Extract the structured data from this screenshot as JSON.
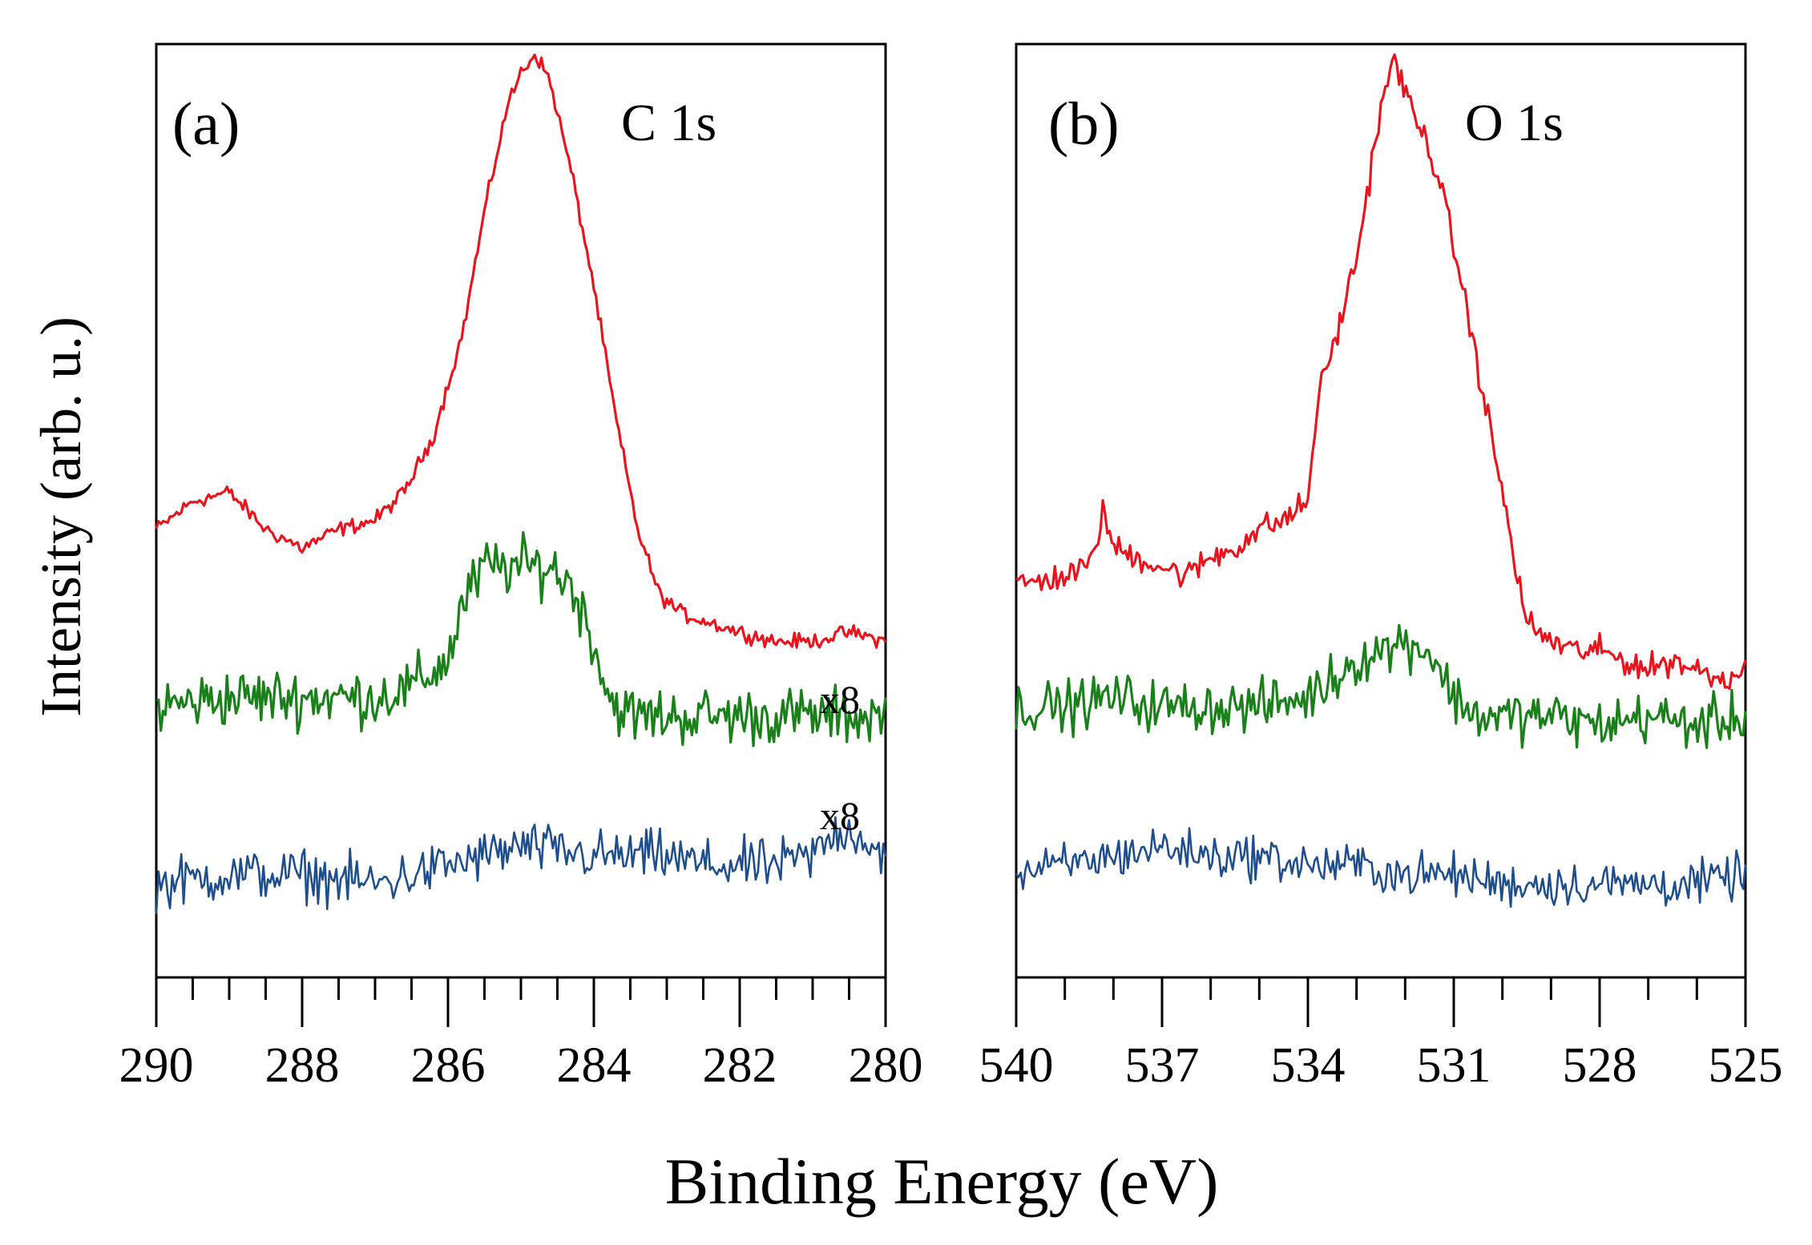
{
  "figure": {
    "ylabel": "Intensity (arb. u.)",
    "xlabel": "Binding Energy (eV)"
  },
  "chart_data": [
    {
      "type": "line",
      "panel_label": "(a)",
      "title": "C 1s",
      "xlim": [
        290,
        280
      ],
      "x_reversed": true,
      "major_ticks": [
        290,
        288,
        286,
        284,
        282,
        280
      ],
      "minor_tick_step": 0.5,
      "y_ticks_shown": false,
      "scale_labels": [
        "x8",
        "x8"
      ],
      "series": [
        {
          "color": "#e8141e",
          "noise": 0.012,
          "points": [
            [
              290,
              0.48
            ],
            [
              289.5,
              0.51
            ],
            [
              289,
              0.52
            ],
            [
              288.5,
              0.48
            ],
            [
              288,
              0.46
            ],
            [
              287.5,
              0.48
            ],
            [
              287,
              0.49
            ],
            [
              286.6,
              0.52
            ],
            [
              286.2,
              0.58
            ],
            [
              285.8,
              0.69
            ],
            [
              285.5,
              0.82
            ],
            [
              285.2,
              0.93
            ],
            [
              285.0,
              0.97
            ],
            [
              284.8,
              0.99
            ],
            [
              284.6,
              0.96
            ],
            [
              284.3,
              0.86
            ],
            [
              284.0,
              0.74
            ],
            [
              283.7,
              0.6
            ],
            [
              283.4,
              0.48
            ],
            [
              283.1,
              0.41
            ],
            [
              282.8,
              0.39
            ],
            [
              282.4,
              0.38
            ],
            [
              282,
              0.37
            ],
            [
              281.5,
              0.36
            ],
            [
              281,
              0.36
            ],
            [
              280.5,
              0.37
            ],
            [
              280,
              0.36
            ]
          ]
        },
        {
          "color": "#1a801a",
          "noise": 0.045,
          "points": [
            [
              290,
              0.29
            ],
            [
              289,
              0.3
            ],
            [
              288,
              0.3
            ],
            [
              287,
              0.3
            ],
            [
              286.5,
              0.31
            ],
            [
              286,
              0.34
            ],
            [
              285.8,
              0.4
            ],
            [
              285.5,
              0.44
            ],
            [
              285.0,
              0.44
            ],
            [
              284.6,
              0.44
            ],
            [
              284.3,
              0.42
            ],
            [
              284.0,
              0.36
            ],
            [
              283.8,
              0.3
            ],
            [
              283.5,
              0.28
            ],
            [
              283,
              0.28
            ],
            [
              282,
              0.28
            ],
            [
              281,
              0.28
            ],
            [
              280,
              0.28
            ]
          ]
        },
        {
          "color": "#1f4e8c",
          "noise": 0.04,
          "points": [
            [
              290,
              0.1
            ],
            [
              289,
              0.11
            ],
            [
              288,
              0.11
            ],
            [
              287,
              0.1
            ],
            [
              286,
              0.12
            ],
            [
              285,
              0.14
            ],
            [
              284,
              0.13
            ],
            [
              283,
              0.13
            ],
            [
              282.5,
              0.12
            ],
            [
              282,
              0.12
            ],
            [
              281.5,
              0.12
            ],
            [
              281,
              0.13
            ],
            [
              280.6,
              0.16
            ],
            [
              280.3,
              0.15
            ],
            [
              280,
              0.13
            ]
          ]
        }
      ]
    },
    {
      "type": "line",
      "panel_label": "(b)",
      "title": "O 1s",
      "xlim": [
        540,
        525
      ],
      "x_reversed": true,
      "major_ticks": [
        540,
        537,
        534,
        531,
        528,
        525
      ],
      "minor_tick_step": 1,
      "y_ticks_shown": false,
      "series": [
        {
          "color": "#e8141e",
          "noise": 0.022,
          "points": [
            [
              540,
              0.42
            ],
            [
              539,
              0.43
            ],
            [
              538.5,
              0.44
            ],
            [
              538.2,
              0.5
            ],
            [
              538,
              0.46
            ],
            [
              537.5,
              0.45
            ],
            [
              537,
              0.44
            ],
            [
              536.5,
              0.43
            ],
            [
              536,
              0.45
            ],
            [
              535.5,
              0.46
            ],
            [
              535,
              0.48
            ],
            [
              534.5,
              0.49
            ],
            [
              534,
              0.51
            ],
            [
              533.8,
              0.62
            ],
            [
              533.4,
              0.69
            ],
            [
              533.0,
              0.77
            ],
            [
              532.6,
              0.9
            ],
            [
              532.4,
              0.96
            ],
            [
              532.2,
              0.98
            ],
            [
              532.0,
              0.95
            ],
            [
              531.8,
              0.92
            ],
            [
              531.5,
              0.89
            ],
            [
              531.2,
              0.83
            ],
            [
              530.9,
              0.76
            ],
            [
              530.6,
              0.68
            ],
            [
              530.3,
              0.6
            ],
            [
              530.0,
              0.52
            ],
            [
              529.8,
              0.46
            ],
            [
              529.5,
              0.38
            ],
            [
              529,
              0.36
            ],
            [
              528.5,
              0.35
            ],
            [
              528,
              0.35
            ],
            [
              527.5,
              0.34
            ],
            [
              527,
              0.33
            ],
            [
              526.5,
              0.34
            ],
            [
              526,
              0.33
            ],
            [
              525.5,
              0.32
            ],
            [
              525,
              0.33
            ]
          ]
        },
        {
          "color": "#1a801a",
          "noise": 0.04,
          "points": [
            [
              540,
              0.29
            ],
            [
              539,
              0.29
            ],
            [
              538,
              0.3
            ],
            [
              537,
              0.29
            ],
            [
              536,
              0.29
            ],
            [
              535,
              0.29
            ],
            [
              534,
              0.3
            ],
            [
              533.5,
              0.32
            ],
            [
              533,
              0.34
            ],
            [
              532.5,
              0.35
            ],
            [
              532,
              0.36
            ],
            [
              531.5,
              0.35
            ],
            [
              531.0,
              0.3
            ],
            [
              530.5,
              0.28
            ],
            [
              530,
              0.28
            ],
            [
              529,
              0.28
            ],
            [
              528,
              0.27
            ],
            [
              527,
              0.28
            ],
            [
              526,
              0.27
            ],
            [
              525,
              0.28
            ]
          ]
        },
        {
          "color": "#1f4e8c",
          "noise": 0.035,
          "points": [
            [
              540,
              0.11
            ],
            [
              539,
              0.12
            ],
            [
              538,
              0.13
            ],
            [
              537,
              0.14
            ],
            [
              536,
              0.13
            ],
            [
              535,
              0.13
            ],
            [
              534,
              0.12
            ],
            [
              533,
              0.12
            ],
            [
              532,
              0.11
            ],
            [
              531,
              0.11
            ],
            [
              530,
              0.1
            ],
            [
              529,
              0.1
            ],
            [
              528,
              0.1
            ],
            [
              527,
              0.1
            ],
            [
              526,
              0.1
            ],
            [
              525,
              0.11
            ]
          ]
        }
      ]
    }
  ]
}
